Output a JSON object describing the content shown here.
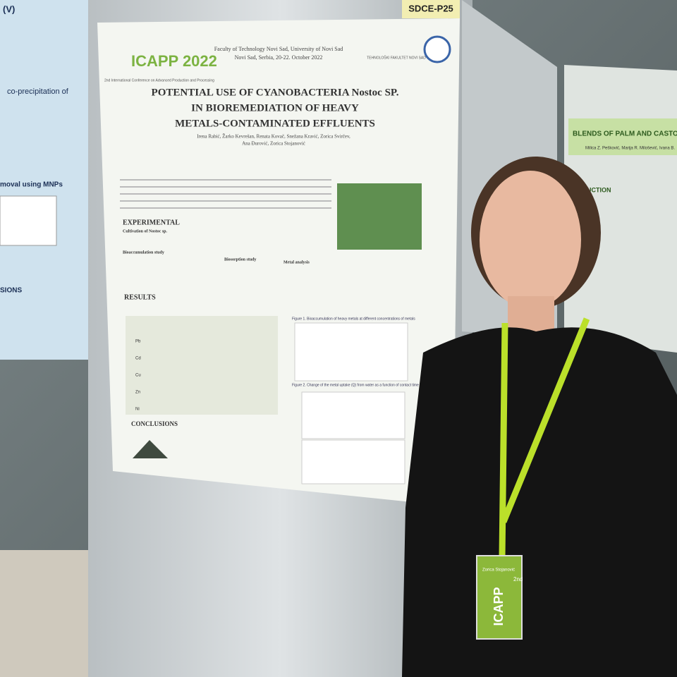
{
  "tag": "SDCE-P25",
  "poster": {
    "logo": "ICAPP 2022",
    "logo_sub": "2nd International Conference on Advanced Production and Processing",
    "header": "Faculty of Technology Novi Sad, University of Novi Sad",
    "header2": "Novi Sad, Serbia, 20-22. October 2022",
    "faculty_logo": "TEHNOLOŠKI FAKULTET NOVI SAD",
    "title": [
      "POTENTIAL USE OF CYANOBACTERIA Nostoc SP.",
      "IN BIOREMEDIATION OF HEAVY",
      "METALS-CONTAMINATED EFFLUENTS"
    ],
    "authors": [
      "Irena Rabić, Žarko Kevrešan, Renata Kovač, Snežana Kravić, Zorica Svirčev,",
      "Ana Đurović, Zorica Stojanović"
    ],
    "sections": [
      "EXPERIMENTAL",
      "RESULTS",
      "CONCLUSIONS"
    ],
    "subsections": [
      "Cultivation of Nostoc sp.",
      "Bioaccumulation study",
      "Biosorption study",
      "Metal analysis"
    ],
    "metals": [
      "Pb",
      "Cd",
      "Cu",
      "Zn",
      "Ni"
    ],
    "figure_captions": [
      "Figure 1. Bioaccumulation of heavy metals at different concentrations of metals",
      "Figure 2. Change of the metal uptake (Q) from water as a function of contact time with dead biomass of Nostoc sp."
    ]
  },
  "left_poster": [
    "(V)",
    "co-precipitation of",
    "moval using MNPs",
    "SIONS"
  ],
  "right_poster": {
    "title": "BLENDS OF PALM AND CASTOR OILS",
    "authors": "Milica Z. Pešković, Marija R. Milošević, Ivana B.",
    "section": "UCTION"
  },
  "badge": {
    "name": "Zorica Stojanović",
    "logo": "ICAPP",
    "edition": "2nd"
  }
}
